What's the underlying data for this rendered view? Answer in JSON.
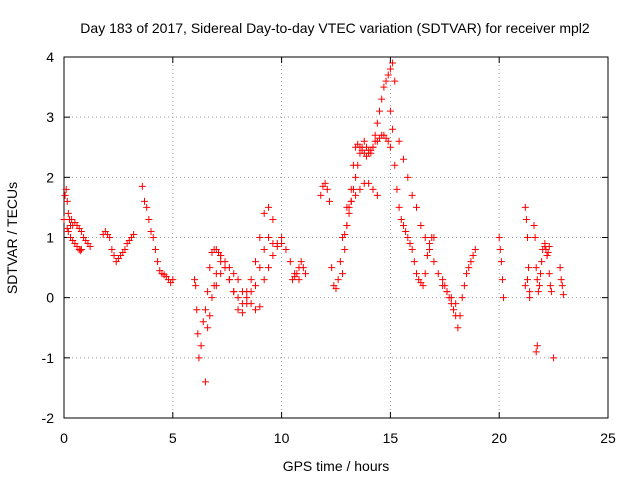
{
  "chart_data": {
    "type": "scatter",
    "title": "Day 183 of 2017, Sidereal Day-to-day VTEC variation (SDTVAR) for receiver mpl2",
    "xlabel": "GPS time / hours",
    "ylabel": "SDTVAR / TECUs",
    "xlim": [
      0,
      25
    ],
    "ylim": [
      -2,
      4
    ],
    "xticks": [
      0,
      5,
      10,
      15,
      20,
      25
    ],
    "yticks": [
      -2,
      -1,
      0,
      1,
      2,
      3,
      4
    ],
    "grid": true,
    "marker": "+",
    "color": "#ff0000",
    "series": [
      {
        "name": "SDTVAR",
        "x": [
          0.0,
          0.05,
          0.1,
          0.15,
          0.2,
          0.25,
          0.3,
          0.35,
          0.4,
          0.5,
          0.6,
          0.7,
          0.8,
          0.9,
          1.0,
          1.1,
          1.2,
          0.15,
          0.2,
          0.3,
          0.4,
          0.5,
          0.6,
          0.7,
          0.75,
          0.8,
          1.8,
          1.9,
          2.0,
          2.1,
          2.2,
          2.3,
          2.4,
          2.5,
          2.6,
          2.7,
          2.8,
          2.9,
          3.0,
          3.1,
          3.2,
          3.6,
          3.7,
          3.8,
          3.9,
          4.0,
          4.1,
          4.2,
          4.3,
          4.4,
          4.5,
          4.6,
          4.7,
          4.8,
          4.9,
          5.0,
          6.0,
          6.05,
          6.1,
          6.15,
          6.2,
          6.3,
          6.4,
          6.5,
          6.6,
          6.7,
          6.8,
          6.9,
          7.0,
          7.1,
          7.2,
          6.5,
          6.6,
          6.7,
          6.8,
          6.9,
          7.0,
          7.2,
          7.4,
          7.6,
          7.8,
          8.0,
          8.2,
          8.4,
          8.6,
          8.8,
          9.0,
          9.2,
          9.4,
          9.6,
          7.0,
          7.2,
          7.4,
          7.6,
          7.8,
          8.0,
          8.2,
          8.4,
          8.6,
          8.8,
          9.0,
          9.2,
          9.4,
          9.6,
          9.8,
          10.0,
          7.2,
          7.4,
          7.6,
          7.8,
          8.0,
          8.2,
          8.4,
          8.6,
          8.8,
          9.0,
          9.2,
          9.4,
          9.6,
          9.8,
          10.0,
          10.2,
          10.4,
          10.6,
          10.8,
          10.5,
          10.6,
          10.7,
          10.8,
          10.9,
          11.0,
          11.1,
          11.8,
          11.9,
          12.0,
          12.1,
          12.2,
          12.3,
          12.4,
          12.5,
          12.6,
          12.7,
          12.8,
          12.9,
          13.0,
          13.1,
          13.2,
          13.3,
          13.4,
          13.5,
          13.6,
          13.7,
          13.8,
          13.9,
          14.0,
          14.1,
          14.2,
          14.3,
          14.4,
          14.5,
          14.6,
          14.7,
          14.8,
          14.9,
          15.0,
          15.1,
          15.2,
          12.8,
          12.9,
          13.0,
          13.1,
          13.2,
          13.3,
          13.4,
          13.5,
          13.6,
          13.7,
          13.8,
          13.9,
          14.0,
          14.1,
          14.2,
          14.3,
          14.4,
          14.5,
          14.6,
          14.7,
          14.8,
          14.9,
          15.0,
          13.0,
          13.2,
          13.4,
          13.6,
          13.8,
          14.0,
          14.2,
          14.4,
          15.0,
          15.1,
          15.2,
          15.3,
          15.4,
          15.5,
          15.6,
          15.7,
          15.8,
          15.9,
          16.0,
          16.1,
          16.2,
          16.3,
          16.4,
          16.5,
          16.6,
          16.7,
          16.8,
          16.9,
          17.0,
          15.4,
          15.6,
          15.8,
          16.0,
          16.2,
          16.4,
          16.6,
          16.8,
          17.0,
          17.2,
          17.4,
          17.6,
          17.8,
          18.0,
          17.4,
          17.5,
          17.6,
          17.7,
          17.8,
          17.9,
          18.0,
          18.1,
          18.2,
          18.3,
          18.4,
          18.5,
          18.6,
          18.7,
          18.8,
          18.9,
          20.0,
          20.05,
          20.1,
          20.15,
          20.2,
          21.2,
          21.25,
          21.3,
          21.35,
          21.4,
          21.2,
          21.3,
          21.4,
          21.6,
          21.65,
          21.7,
          21.75,
          21.8,
          21.85,
          21.9,
          21.95,
          22.0,
          22.1,
          22.2,
          22.3,
          22.35,
          22.4,
          22.1,
          22.15,
          22.2,
          22.25,
          22.3,
          22.8,
          22.85,
          22.9,
          22.95,
          21.7,
          21.75,
          22.5
        ],
        "y": [
          1.3,
          1.7,
          1.8,
          1.6,
          1.4,
          1.3,
          1.2,
          1.3,
          1.2,
          1.25,
          1.2,
          1.15,
          1.1,
          1.0,
          0.95,
          0.9,
          0.85,
          1.15,
          1.1,
          1.0,
          0.95,
          0.9,
          0.85,
          0.8,
          0.78,
          0.8,
          1.05,
          1.1,
          1.05,
          1.0,
          0.8,
          0.7,
          0.6,
          0.65,
          0.7,
          0.75,
          0.8,
          0.9,
          0.95,
          1.0,
          1.05,
          1.85,
          1.6,
          1.5,
          1.3,
          1.1,
          1.0,
          0.8,
          0.6,
          0.45,
          0.4,
          0.38,
          0.35,
          0.3,
          0.25,
          0.3,
          0.3,
          0.2,
          -0.2,
          -0.6,
          -1.0,
          -0.8,
          -0.4,
          -0.2,
          0.1,
          0.5,
          0.75,
          0.8,
          0.8,
          0.75,
          0.7,
          -1.4,
          -0.5,
          -0.3,
          0.0,
          0.2,
          0.4,
          0.6,
          0.5,
          0.3,
          0.1,
          0.0,
          -0.1,
          0.1,
          0.3,
          0.6,
          1.0,
          1.4,
          1.5,
          1.3,
          0.2,
          0.4,
          0.5,
          0.3,
          0.1,
          -0.2,
          -0.25,
          -0.1,
          0.1,
          0.2,
          0.5,
          0.8,
          1.0,
          0.9,
          0.85,
          0.9,
          0.7,
          0.6,
          0.5,
          0.4,
          0.3,
          0.1,
          0.0,
          -0.1,
          -0.2,
          -0.15,
          0.3,
          0.5,
          0.7,
          0.9,
          1.0,
          0.8,
          0.6,
          0.4,
          0.3,
          0.3,
          0.35,
          0.4,
          0.5,
          0.6,
          0.5,
          0.4,
          1.7,
          1.85,
          1.9,
          1.8,
          1.6,
          0.5,
          0.2,
          0.15,
          0.3,
          0.6,
          1.0,
          1.05,
          1.2,
          1.4,
          1.6,
          1.8,
          2.0,
          2.2,
          2.4,
          2.5,
          2.6,
          2.5,
          2.45,
          2.4,
          2.5,
          2.7,
          2.9,
          3.1,
          3.3,
          3.5,
          3.6,
          3.7,
          3.8,
          3.9,
          3.6,
          0.4,
          0.8,
          1.2,
          1.5,
          1.8,
          2.2,
          2.5,
          2.55,
          2.5,
          2.45,
          2.4,
          2.35,
          2.4,
          2.45,
          2.5,
          2.6,
          2.6,
          2.65,
          2.7,
          2.7,
          2.65,
          2.6,
          2.5,
          1.5,
          1.6,
          1.7,
          1.8,
          1.9,
          1.9,
          1.8,
          1.7,
          3.1,
          2.8,
          2.2,
          1.8,
          1.5,
          1.3,
          1.2,
          1.1,
          1.0,
          0.9,
          0.8,
          0.6,
          0.4,
          0.3,
          0.25,
          0.2,
          0.4,
          0.7,
          0.9,
          1.0,
          1.0,
          2.6,
          2.3,
          2.0,
          1.7,
          1.5,
          1.2,
          1.0,
          0.8,
          0.6,
          0.4,
          0.2,
          0.1,
          0.0,
          -0.1,
          0.3,
          0.2,
          0.1,
          0.0,
          -0.1,
          -0.2,
          -0.3,
          -0.5,
          -0.3,
          0.0,
          0.2,
          0.4,
          0.5,
          0.6,
          0.7,
          0.8,
          1.0,
          0.8,
          0.6,
          0.3,
          0.0,
          1.5,
          1.3,
          1.0,
          0.5,
          0.1,
          0.2,
          0.3,
          0.0,
          1.2,
          1.0,
          0.5,
          0.3,
          0.1,
          0.2,
          0.4,
          0.6,
          0.8,
          0.85,
          0.7,
          0.4,
          0.2,
          0.1,
          0.9,
          0.8,
          0.7,
          0.75,
          0.85,
          0.5,
          0.3,
          0.2,
          0.05,
          -0.9,
          -0.8,
          -1.0
        ]
      }
    ]
  }
}
